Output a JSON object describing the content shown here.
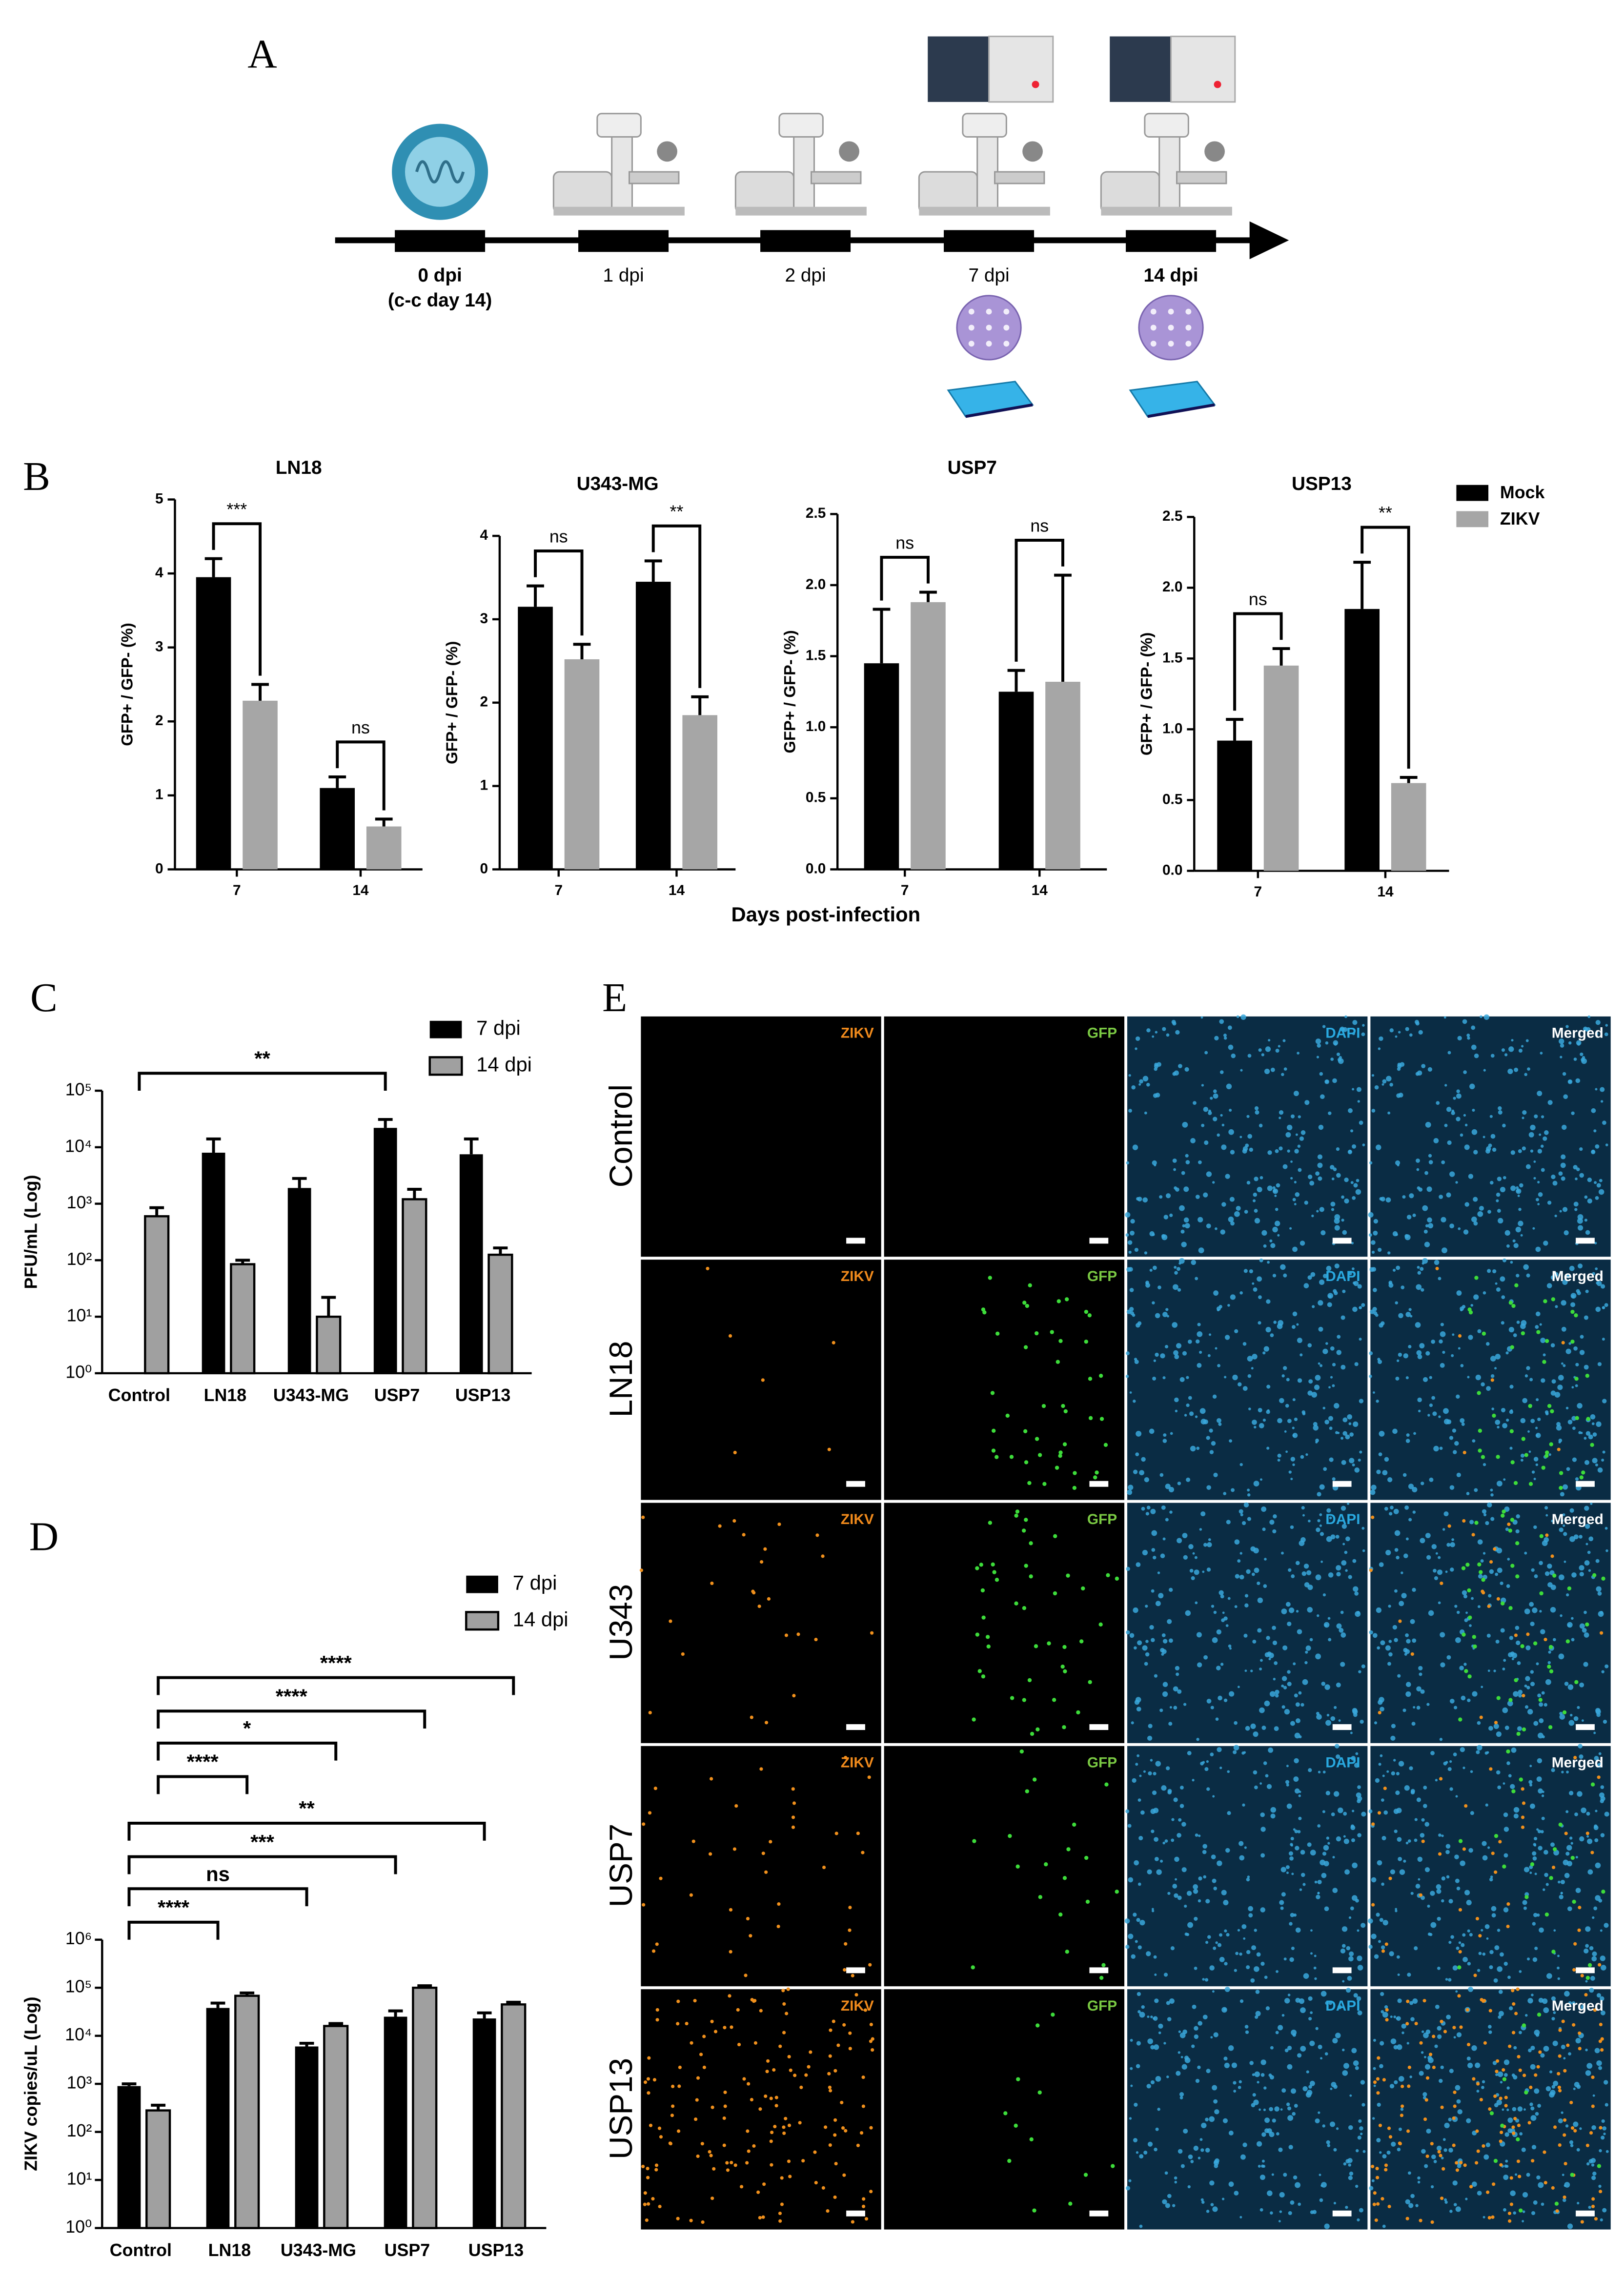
{
  "panel_labels": [
    "A",
    "B",
    "C",
    "D",
    "E"
  ],
  "timeline": {
    "timepoints": [
      {
        "label": "0 dpi",
        "note": "(c-c day 14)"
      },
      {
        "label": "1 dpi"
      },
      {
        "label": "2 dpi"
      },
      {
        "label": "7 dpi"
      },
      {
        "label": "14 dpi"
      }
    ]
  },
  "chart_data": [
    {
      "type": "bar",
      "xlabel": "Days post-infection",
      "series": [
        {
          "name": "Mock",
          "color": "#000000"
        },
        {
          "name": "ZIKV",
          "color": "#a6a6a6"
        }
      ],
      "subplots": [
        {
          "title": "LN18",
          "ylabel": "GFP+ / GFP- (%)",
          "categories": [
            "7",
            "14"
          ],
          "ylim": [
            0,
            5
          ],
          "yticks": [
            0,
            1,
            2,
            3,
            4,
            5
          ],
          "series": [
            {
              "values": [
                3.95,
                1.1
              ],
              "errors": [
                0.25,
                0.15
              ]
            },
            {
              "values": [
                2.28,
                0.58
              ],
              "errors": [
                0.22,
                0.1
              ]
            }
          ],
          "annotations": [
            "***",
            "ns"
          ]
        },
        {
          "title": "U343-MG",
          "ylabel": "GFP+ / GFP- (%)",
          "categories": [
            "7",
            "14"
          ],
          "ylim": [
            0,
            4
          ],
          "yticks": [
            0,
            1,
            2,
            3,
            4
          ],
          "series": [
            {
              "values": [
                3.15,
                3.45
              ],
              "errors": [
                0.25,
                0.25
              ]
            },
            {
              "values": [
                2.52,
                1.85
              ],
              "errors": [
                0.18,
                0.22
              ]
            }
          ],
          "annotations": [
            "ns",
            "**"
          ]
        },
        {
          "title": "USP7",
          "ylabel": "GFP+ / GFP- (%)",
          "categories": [
            "7",
            "14"
          ],
          "ylim": [
            0,
            2.5
          ],
          "yticks": [
            {
              "value": 0,
              "label": "0.0"
            },
            0.5,
            {
              "value": 1,
              "label": "1.0"
            },
            1.5,
            {
              "value": 2,
              "label": "2.0"
            },
            2.5
          ],
          "series": [
            {
              "values": [
                1.45,
                1.25
              ],
              "errors": [
                0.38,
                0.15
              ]
            },
            {
              "values": [
                1.88,
                1.32
              ],
              "errors": [
                0.07,
                0.75
              ]
            }
          ],
          "annotations": [
            "ns",
            "ns"
          ]
        },
        {
          "title": "USP13",
          "ylabel": "GFP+ / GFP- (%)",
          "categories": [
            "7",
            "14"
          ],
          "ylim": [
            0,
            2.5
          ],
          "yticks": [
            {
              "value": 0,
              "label": "0.0"
            },
            0.5,
            {
              "value": 1,
              "label": "1.0"
            },
            1.5,
            {
              "value": 2,
              "label": "2.0"
            },
            2.5
          ],
          "series": [
            {
              "values": [
                0.92,
                1.85
              ],
              "errors": [
                0.15,
                0.33
              ]
            },
            {
              "values": [
                1.45,
                0.62
              ],
              "errors": [
                0.12,
                0.04
              ]
            }
          ],
          "annotations": [
            "ns",
            "**"
          ]
        }
      ]
    },
    {
      "type": "bar",
      "log_scale": true,
      "ylabel": "PFU/mL (Log)",
      "categories": [
        "Control",
        "LN18",
        "U343-MG",
        "USP7",
        "USP13"
      ],
      "ylim": [
        1,
        100000
      ],
      "yticks": [
        {
          "value": 1,
          "label": "10⁰"
        },
        {
          "value": 10,
          "label": "10¹"
        },
        {
          "value": 100,
          "label": "10²"
        },
        {
          "value": 1000,
          "label": "10³"
        },
        {
          "value": 10000,
          "label": "10⁴"
        },
        {
          "value": 100000,
          "label": "10⁵"
        }
      ],
      "series": [
        {
          "name": "7 dpi",
          "color": "#000000",
          "values": [
            null,
            8000,
            1900,
            22000,
            7500
          ],
          "errors": [
            null,
            6000,
            900,
            9000,
            6500
          ]
        },
        {
          "name": "14 dpi",
          "color": "#a0a0a0",
          "edgecolor": "#000000",
          "values": [
            600,
            85,
            10,
            1200,
            125
          ],
          "errors": [
            250,
            15,
            12,
            600,
            40
          ]
        }
      ],
      "annotations": [
        "**"
      ]
    },
    {
      "type": "bar",
      "log_scale": true,
      "ylabel": "ZIKV copies/uL (Log)",
      "categories": [
        "Control",
        "LN18",
        "U343-MG",
        "USP7",
        "USP13"
      ],
      "ylim": [
        1,
        1000000
      ],
      "yticks": [
        {
          "value": 1,
          "label": "10⁰"
        },
        {
          "value": 10,
          "label": "10¹"
        },
        {
          "value": 100,
          "label": "10²"
        },
        {
          "value": 1000,
          "label": "10³"
        },
        {
          "value": 10000,
          "label": "10⁴"
        },
        {
          "value": 100000,
          "label": "10⁵"
        },
        {
          "value": 1000000,
          "label": "10⁶"
        }
      ],
      "series": [
        {
          "name": "7 dpi",
          "color": "#000000",
          "values": [
            900,
            38000,
            6000,
            25000,
            23000
          ],
          "errors": [
            100,
            10000,
            1000,
            8000,
            7000
          ]
        },
        {
          "name": "14 dpi",
          "color": "#a0a0a0",
          "edgecolor": "#000000",
          "values": [
            280,
            68000,
            16000,
            100000,
            45000
          ],
          "errors": [
            80,
            10000,
            2000,
            10000,
            5000
          ]
        }
      ],
      "annotations": [
        "****",
        "****",
        "*",
        "****",
        "**",
        "***",
        "ns",
        "****"
      ]
    }
  ],
  "microscopy": {
    "rows": [
      "Control",
      "LN18",
      "U343",
      "USP7",
      "USP13"
    ],
    "channels": [
      "ZIKV",
      "GFP",
      "DAPI",
      "Merged"
    ]
  }
}
